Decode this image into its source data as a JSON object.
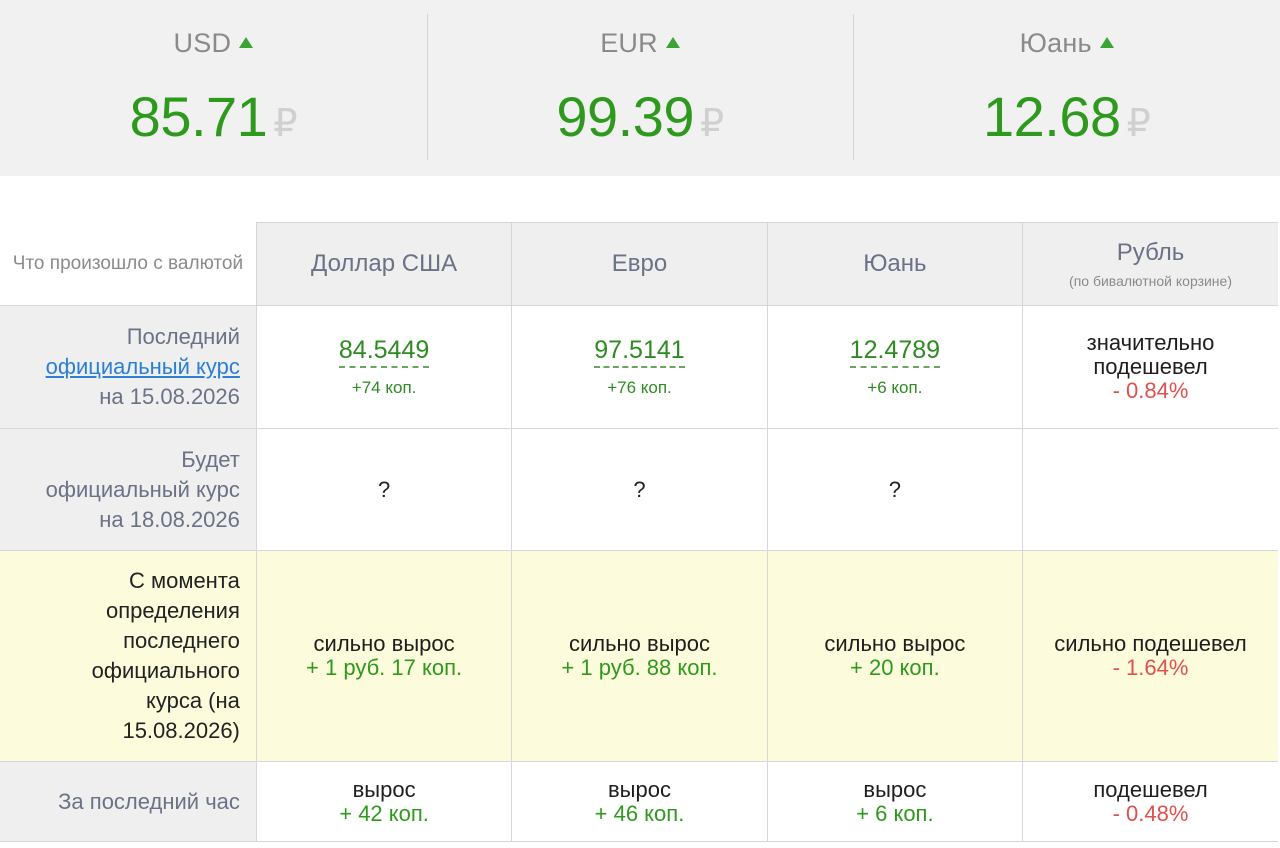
{
  "top_rates": [
    {
      "code": "USD",
      "value": "85.71",
      "currency_sign": "₽",
      "trend": "up"
    },
    {
      "code": "EUR",
      "value": "99.39",
      "currency_sign": "₽",
      "trend": "up"
    },
    {
      "code": "Юань",
      "value": "12.68",
      "currency_sign": "₽",
      "trend": "up"
    }
  ],
  "table": {
    "corner_label": "Что произошло с валютой",
    "columns": [
      {
        "title": "Доллар США",
        "subtitle": ""
      },
      {
        "title": "Евро",
        "subtitle": ""
      },
      {
        "title": "Юань",
        "subtitle": ""
      },
      {
        "title": "Рубль",
        "subtitle": "(по бивалютной корзине)"
      }
    ],
    "official_row": {
      "label_top": "Последний",
      "label_link": "официальный курс",
      "label_bottom": "на 15.08.2026",
      "cells": [
        {
          "value": "84.5449",
          "delta": "+74 коп."
        },
        {
          "value": "97.5141",
          "delta": "+76 коп."
        },
        {
          "value": "12.4789",
          "delta": "+6 коп."
        }
      ],
      "ruble": {
        "verdict_line1": "значительно",
        "verdict_line2": "подешевел",
        "change": "- 0.84%"
      }
    },
    "future_row": {
      "label_line1": "Будет",
      "label_line2": "официальный курс",
      "label_line3": "на 18.08.2026",
      "cells": [
        "?",
        "?",
        "?",
        ""
      ]
    },
    "since_row": {
      "label_lines": [
        "С момента",
        "определения",
        "последнего",
        "официального",
        "курса (на",
        "15.08.2026)"
      ],
      "cells": [
        {
          "verdict": "сильно вырос",
          "change": "+ 1 руб. 17 коп."
        },
        {
          "verdict": "сильно вырос",
          "change": "+ 1 руб. 88 коп."
        },
        {
          "verdict": "сильно вырос",
          "change": "+ 20 коп."
        },
        {
          "verdict": "сильно подешевел",
          "change": "- 1.64%"
        }
      ]
    },
    "hour_row": {
      "label": "За последний час",
      "cells": [
        {
          "verdict": "вырос",
          "change": "+ 42 коп."
        },
        {
          "verdict": "вырос",
          "change": "+ 46 коп."
        },
        {
          "verdict": "вырос",
          "change": "+ 6 коп."
        },
        {
          "verdict": "подешевел",
          "change": "- 0.48%"
        }
      ]
    }
  },
  "colors": {
    "up": "#2e9a1d",
    "down": "#e0504d",
    "link": "#2b7fd5",
    "highlight_row": "#fcfbdc"
  }
}
